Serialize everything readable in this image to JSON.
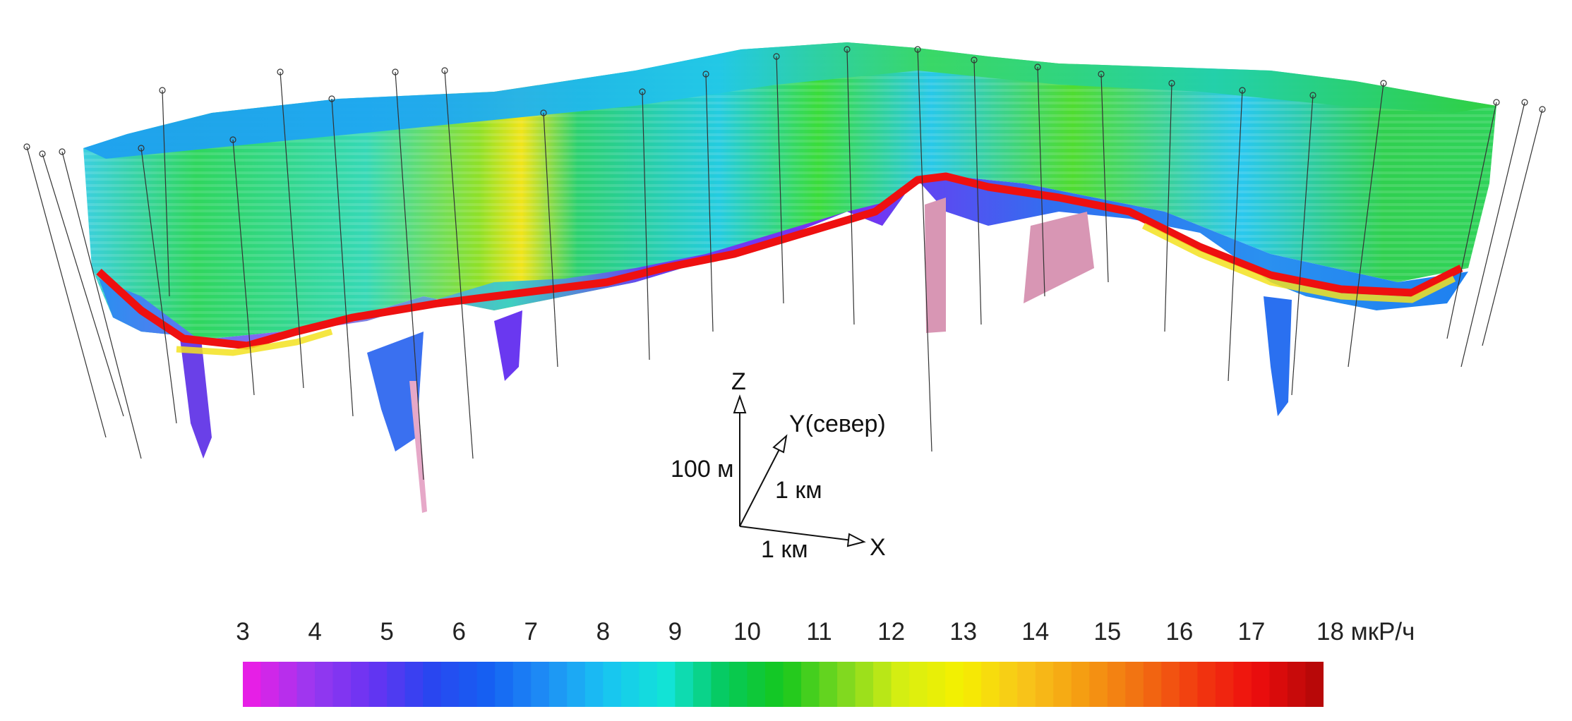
{
  "axes_indicator": {
    "z_label": "Z",
    "y_label": "Y(север)",
    "x_label": "X",
    "z_scale": "100 м",
    "y_scale": "1 км",
    "x_scale": "1 км"
  },
  "legend": {
    "ticks": [
      "3",
      "4",
      "5",
      "6",
      "7",
      "8",
      "9",
      "10",
      "11",
      "12",
      "13",
      "14",
      "15",
      "16",
      "17"
    ],
    "last_tick": "18 мкР/ч",
    "min": 3,
    "max": 18,
    "colors": [
      "#e61fe6",
      "#9a38f0",
      "#6a33f2",
      "#2a45f0",
      "#1560f2",
      "#1e8ff5",
      "#19c4f2",
      "#12e3d8",
      "#05c95c",
      "#16c81c",
      "#7bd820",
      "#d6ee12",
      "#f5f000",
      "#f8c81a",
      "#f5a012",
      "#f27212",
      "#f23a10",
      "#ee0d0d",
      "#b80808"
    ]
  }
}
